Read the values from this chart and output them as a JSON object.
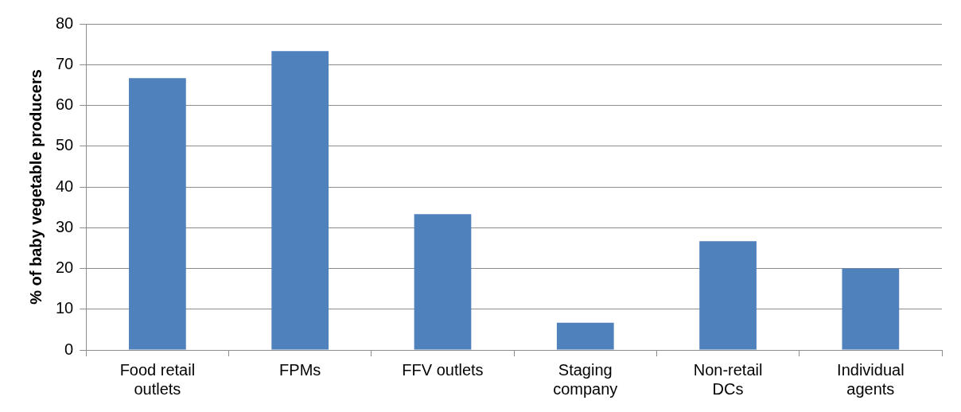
{
  "chart_data": {
    "type": "bar",
    "ylabel": "% of baby vegetable producers",
    "categories": [
      "Food retail outlets",
      "FPMs",
      "FFV outlets",
      "Staging company",
      "Non-retail DCs",
      "Individual agents"
    ],
    "values": [
      66.7,
      73.3,
      33.3,
      6.7,
      26.7,
      20
    ],
    "color": "#4f81bd",
    "ylim": [
      0,
      80
    ],
    "yticks": [
      0,
      10,
      20,
      30,
      40,
      50,
      60,
      70,
      80
    ],
    "grid": "y",
    "legend": false
  }
}
